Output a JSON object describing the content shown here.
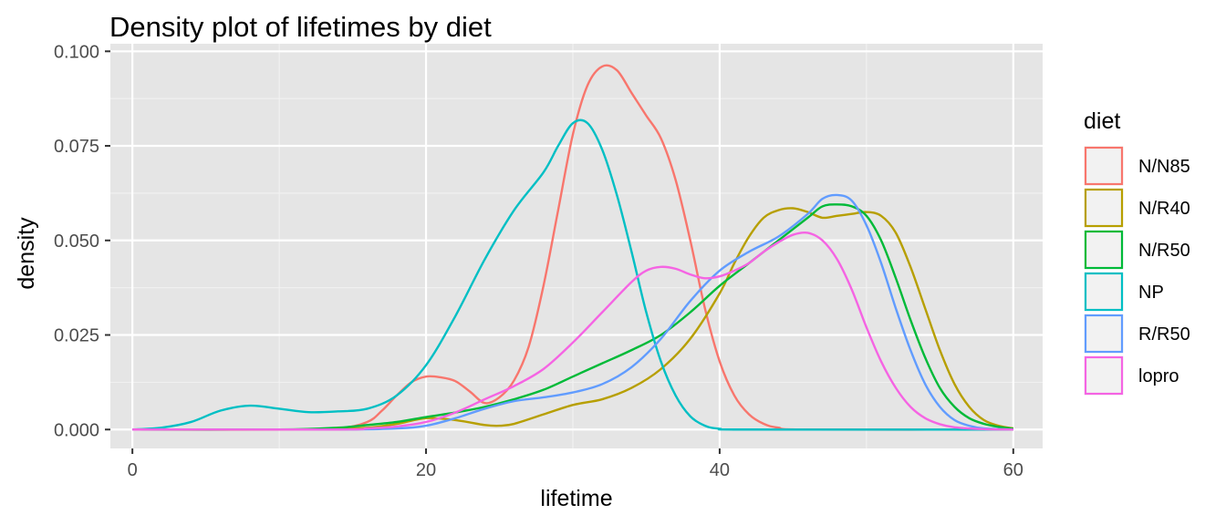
{
  "chart_data": {
    "type": "line",
    "title": "Density plot of lifetimes by diet",
    "xlabel": "lifetime",
    "ylabel": "density",
    "xlim": [
      -1.5,
      62
    ],
    "ylim": [
      -0.005,
      0.102
    ],
    "x_ticks": [
      0,
      20,
      40,
      60
    ],
    "x_minor_ticks": [
      10,
      30,
      50
    ],
    "y_ticks": [
      0.0,
      0.025,
      0.05,
      0.075,
      0.1
    ],
    "y_minor_ticks": [
      0.0125,
      0.0375,
      0.0625,
      0.0875
    ],
    "x_tick_labels": [
      "0",
      "20",
      "40",
      "60"
    ],
    "y_tick_labels": [
      "0.000",
      "0.025",
      "0.050",
      "0.075",
      "0.100"
    ],
    "grid": true,
    "background": "#e5e5e5",
    "legend": {
      "title": "diet",
      "position": "right"
    },
    "series": [
      {
        "name": "N/N85",
        "color": "#f8766d",
        "points": [
          [
            0,
            0
          ],
          [
            10,
            0
          ],
          [
            14,
            0.0003
          ],
          [
            16,
            0.002
          ],
          [
            17,
            0.005
          ],
          [
            18,
            0.009
          ],
          [
            19,
            0.0125
          ],
          [
            20,
            0.014
          ],
          [
            21,
            0.0138
          ],
          [
            22,
            0.0128
          ],
          [
            23,
            0.01
          ],
          [
            24,
            0.007
          ],
          [
            25,
            0.0085
          ],
          [
            26,
            0.013
          ],
          [
            27,
            0.022
          ],
          [
            28,
            0.038
          ],
          [
            29,
            0.058
          ],
          [
            30,
            0.078
          ],
          [
            31,
            0.091
          ],
          [
            32,
            0.096
          ],
          [
            33,
            0.095
          ],
          [
            34,
            0.089
          ],
          [
            35,
            0.083
          ],
          [
            36,
            0.077
          ],
          [
            37,
            0.066
          ],
          [
            38,
            0.05
          ],
          [
            39,
            0.032
          ],
          [
            40,
            0.018
          ],
          [
            41,
            0.009
          ],
          [
            42,
            0.004
          ],
          [
            43,
            0.0015
          ],
          [
            44,
            0.0005
          ],
          [
            46,
            0
          ],
          [
            60,
            0
          ]
        ]
      },
      {
        "name": "N/R40",
        "color": "#b79f00",
        "points": [
          [
            0,
            0
          ],
          [
            12,
            0
          ],
          [
            16,
            0.0005
          ],
          [
            18,
            0.0015
          ],
          [
            20,
            0.003
          ],
          [
            22,
            0.0025
          ],
          [
            24,
            0.0012
          ],
          [
            25,
            0.001
          ],
          [
            26,
            0.0015
          ],
          [
            28,
            0.004
          ],
          [
            30,
            0.0065
          ],
          [
            32,
            0.008
          ],
          [
            34,
            0.011
          ],
          [
            36,
            0.016
          ],
          [
            38,
            0.024
          ],
          [
            40,
            0.036
          ],
          [
            41,
            0.044
          ],
          [
            42,
            0.051
          ],
          [
            43,
            0.056
          ],
          [
            44,
            0.058
          ],
          [
            45,
            0.0585
          ],
          [
            46,
            0.0575
          ],
          [
            47,
            0.056
          ],
          [
            48,
            0.0565
          ],
          [
            49,
            0.057
          ],
          [
            50,
            0.0575
          ],
          [
            51,
            0.0565
          ],
          [
            52,
            0.052
          ],
          [
            53,
            0.043
          ],
          [
            54,
            0.032
          ],
          [
            55,
            0.021
          ],
          [
            56,
            0.012
          ],
          [
            57,
            0.006
          ],
          [
            58,
            0.0025
          ],
          [
            59,
            0.001
          ],
          [
            60,
            0.0003
          ]
        ]
      },
      {
        "name": "N/R50",
        "color": "#00ba38",
        "points": [
          [
            0,
            0
          ],
          [
            10,
            0
          ],
          [
            14,
            0.0005
          ],
          [
            16,
            0.0012
          ],
          [
            18,
            0.002
          ],
          [
            20,
            0.0033
          ],
          [
            22,
            0.0045
          ],
          [
            24,
            0.006
          ],
          [
            26,
            0.008
          ],
          [
            28,
            0.0105
          ],
          [
            30,
            0.014
          ],
          [
            32,
            0.0175
          ],
          [
            34,
            0.021
          ],
          [
            36,
            0.025
          ],
          [
            38,
            0.031
          ],
          [
            40,
            0.038
          ],
          [
            42,
            0.044
          ],
          [
            44,
            0.05
          ],
          [
            46,
            0.056
          ],
          [
            47,
            0.059
          ],
          [
            48,
            0.0595
          ],
          [
            49,
            0.059
          ],
          [
            50,
            0.0565
          ],
          [
            51,
            0.05
          ],
          [
            52,
            0.04
          ],
          [
            53,
            0.029
          ],
          [
            54,
            0.019
          ],
          [
            55,
            0.011
          ],
          [
            56,
            0.006
          ],
          [
            57,
            0.003
          ],
          [
            58,
            0.0015
          ],
          [
            59,
            0.0007
          ],
          [
            60,
            0.0002
          ]
        ]
      },
      {
        "name": "NP",
        "color": "#00bfc4",
        "points": [
          [
            0,
            0
          ],
          [
            2,
            0.0005
          ],
          [
            4,
            0.002
          ],
          [
            6,
            0.005
          ],
          [
            8,
            0.0063
          ],
          [
            10,
            0.0055
          ],
          [
            12,
            0.0046
          ],
          [
            14,
            0.0048
          ],
          [
            16,
            0.0055
          ],
          [
            18,
            0.009
          ],
          [
            20,
            0.017
          ],
          [
            22,
            0.03
          ],
          [
            24,
            0.045
          ],
          [
            26,
            0.058
          ],
          [
            28,
            0.068
          ],
          [
            29,
            0.075
          ],
          [
            30,
            0.081
          ],
          [
            31,
            0.081
          ],
          [
            32,
            0.074
          ],
          [
            33,
            0.062
          ],
          [
            34,
            0.047
          ],
          [
            35,
            0.031
          ],
          [
            36,
            0.018
          ],
          [
            37,
            0.009
          ],
          [
            38,
            0.0035
          ],
          [
            39,
            0.001
          ],
          [
            40,
            0.0002
          ],
          [
            42,
            0
          ],
          [
            60,
            0
          ]
        ]
      },
      {
        "name": "R/R50",
        "color": "#619cff",
        "points": [
          [
            0,
            0
          ],
          [
            14,
            0
          ],
          [
            18,
            0.0003
          ],
          [
            20,
            0.001
          ],
          [
            22,
            0.003
          ],
          [
            24,
            0.0055
          ],
          [
            26,
            0.0075
          ],
          [
            28,
            0.0085
          ],
          [
            30,
            0.0098
          ],
          [
            32,
            0.012
          ],
          [
            34,
            0.0165
          ],
          [
            36,
            0.024
          ],
          [
            38,
            0.034
          ],
          [
            40,
            0.042
          ],
          [
            42,
            0.047
          ],
          [
            44,
            0.051
          ],
          [
            46,
            0.057
          ],
          [
            47,
            0.061
          ],
          [
            48,
            0.062
          ],
          [
            49,
            0.0605
          ],
          [
            50,
            0.054
          ],
          [
            51,
            0.044
          ],
          [
            52,
            0.032
          ],
          [
            53,
            0.021
          ],
          [
            54,
            0.012
          ],
          [
            55,
            0.006
          ],
          [
            56,
            0.0025
          ],
          [
            57,
            0.001
          ],
          [
            58,
            0.0003
          ],
          [
            60,
            0
          ]
        ]
      },
      {
        "name": "lopro",
        "color": "#f564e3",
        "points": [
          [
            0,
            0
          ],
          [
            14,
            0
          ],
          [
            16,
            0.0003
          ],
          [
            18,
            0.0008
          ],
          [
            20,
            0.002
          ],
          [
            22,
            0.0045
          ],
          [
            24,
            0.008
          ],
          [
            26,
            0.0115
          ],
          [
            28,
            0.016
          ],
          [
            30,
            0.023
          ],
          [
            32,
            0.031
          ],
          [
            34,
            0.039
          ],
          [
            35,
            0.042
          ],
          [
            36,
            0.043
          ],
          [
            37,
            0.0425
          ],
          [
            38,
            0.041
          ],
          [
            39,
            0.04
          ],
          [
            40,
            0.0405
          ],
          [
            41,
            0.042
          ],
          [
            42,
            0.044
          ],
          [
            43,
            0.047
          ],
          [
            44,
            0.0495
          ],
          [
            45,
            0.0515
          ],
          [
            46,
            0.052
          ],
          [
            47,
            0.05
          ],
          [
            48,
            0.045
          ],
          [
            49,
            0.037
          ],
          [
            50,
            0.027
          ],
          [
            51,
            0.018
          ],
          [
            52,
            0.011
          ],
          [
            53,
            0.006
          ],
          [
            54,
            0.003
          ],
          [
            55,
            0.0014
          ],
          [
            56,
            0.0006
          ],
          [
            58,
            0.0001
          ],
          [
            60,
            0
          ]
        ]
      }
    ]
  }
}
